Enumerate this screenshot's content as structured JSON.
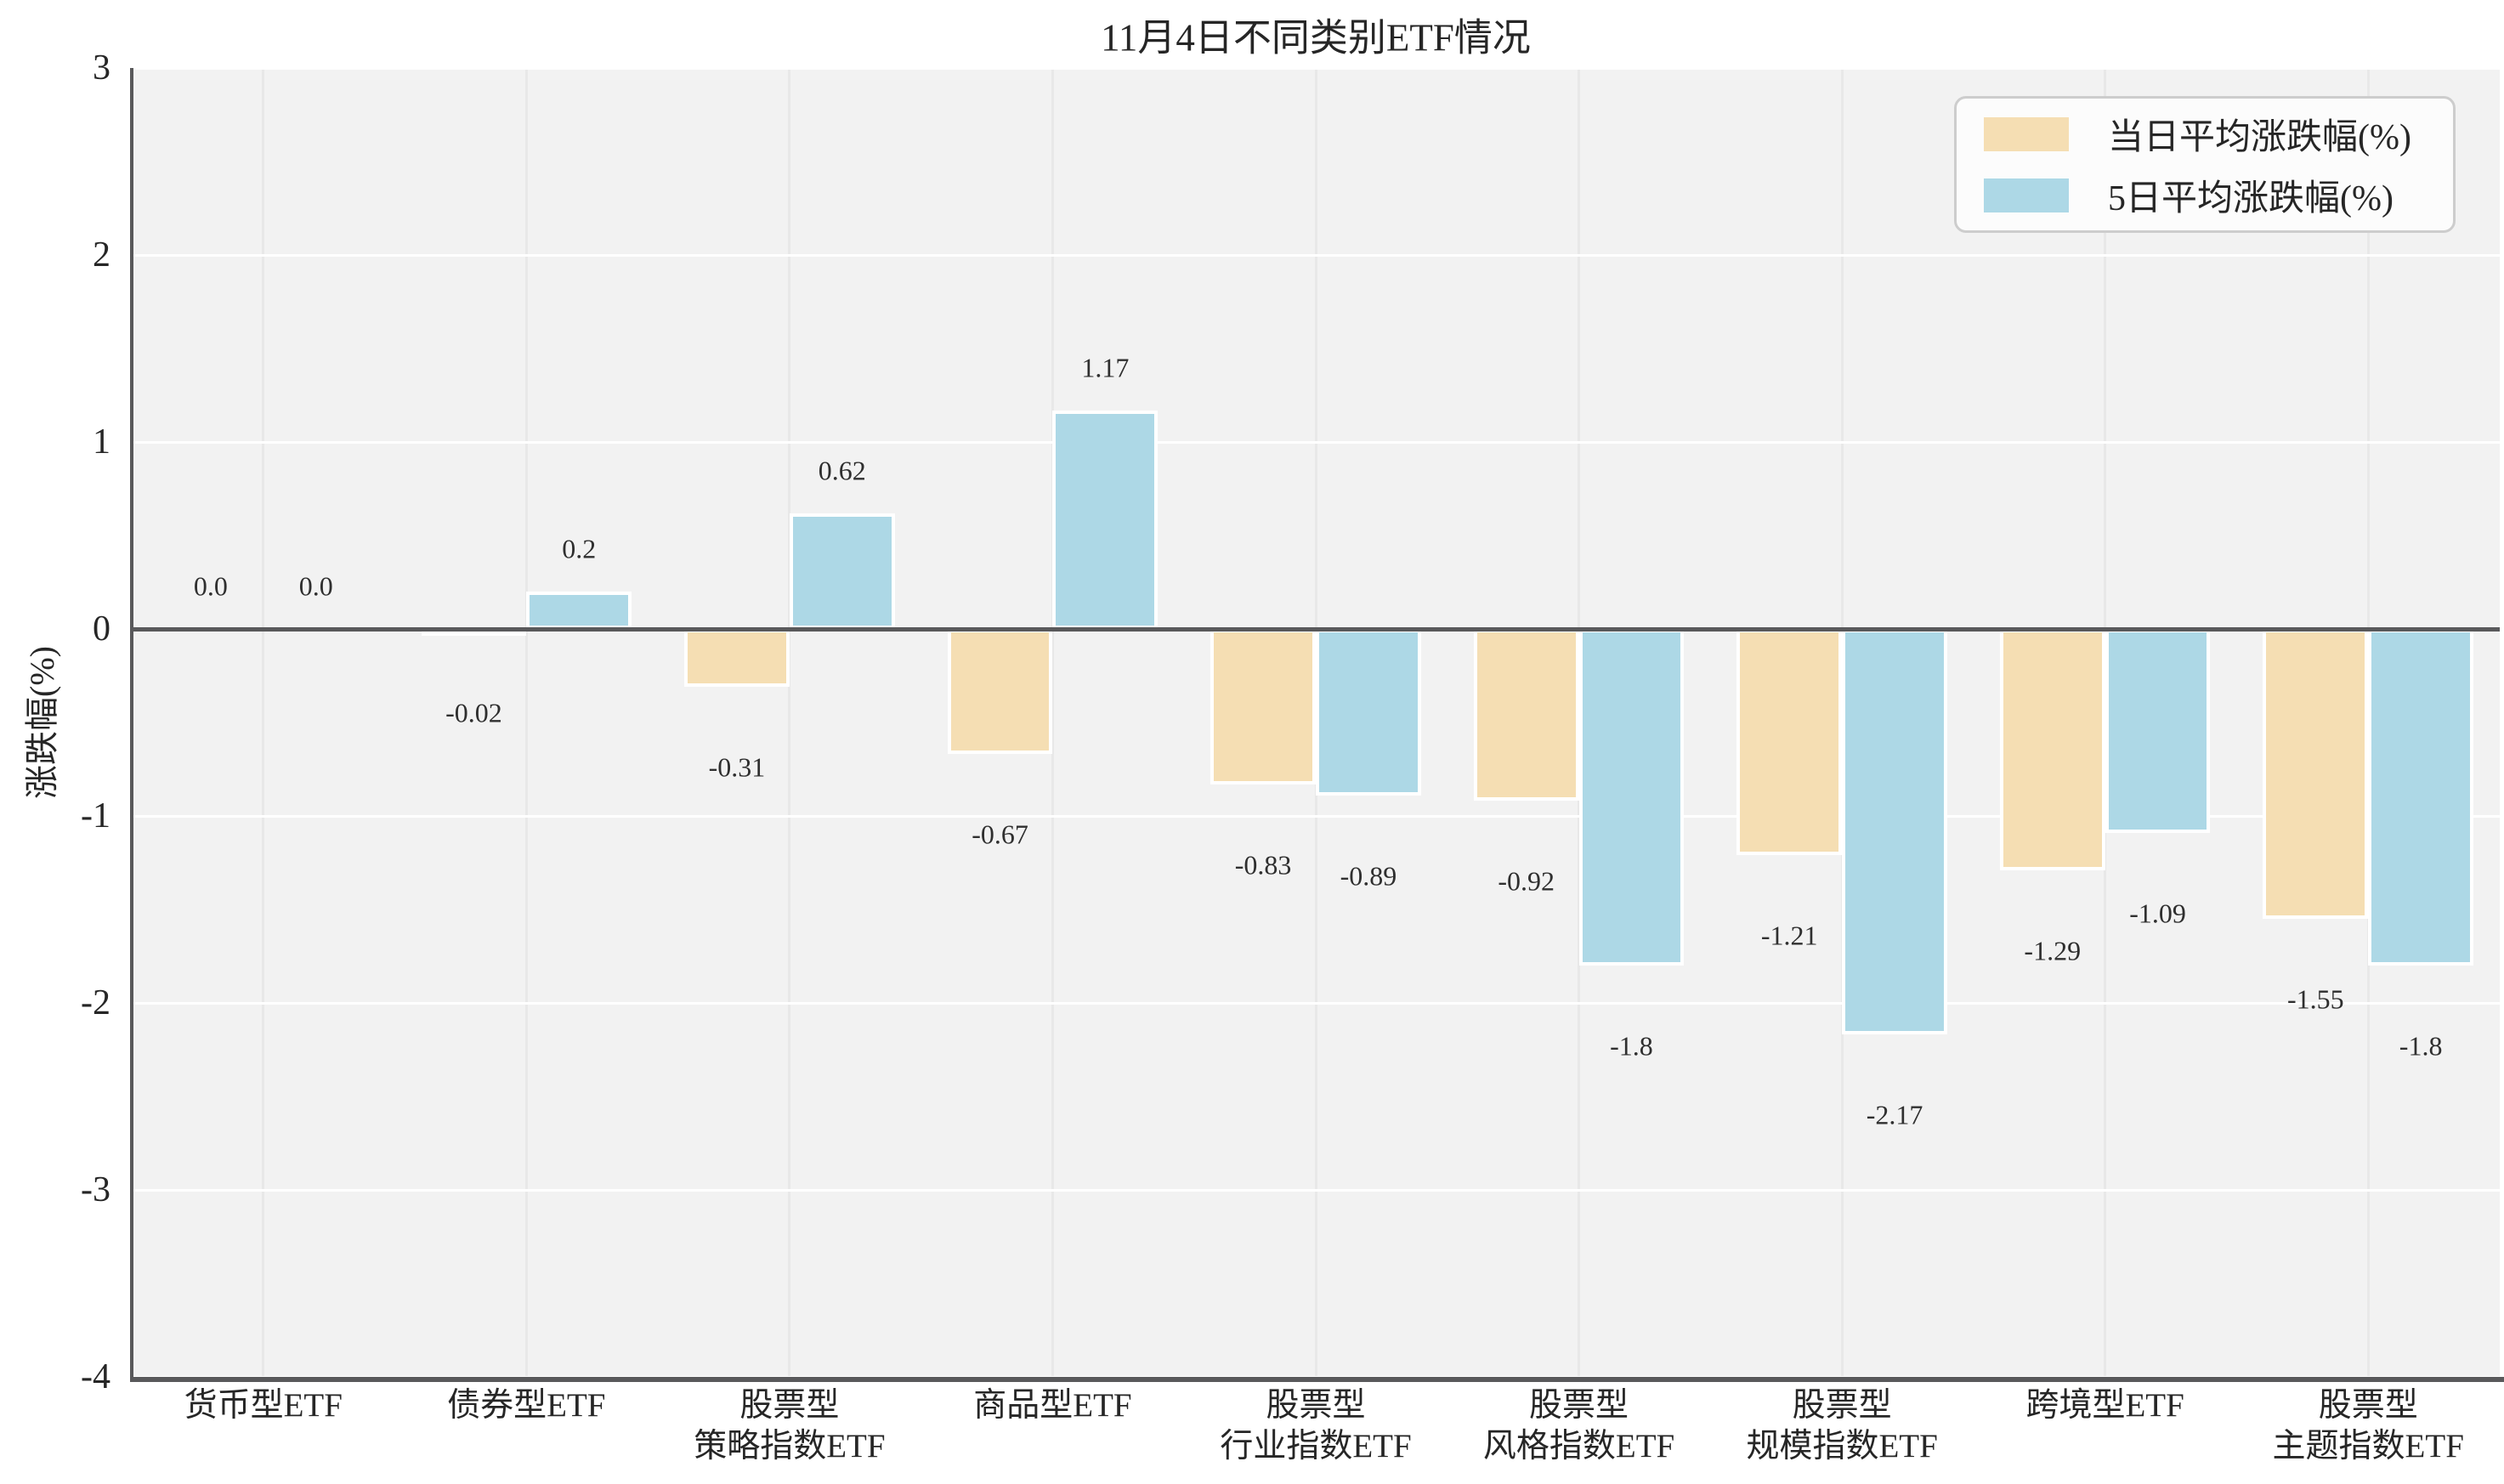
{
  "title": "11月4日不同类别ETF情况",
  "axis": {
    "y_title": "涨跌幅(%)",
    "y_tick_labels": [
      "3",
      "2",
      "1",
      "0",
      "-1",
      "-2",
      "-3",
      "-4"
    ]
  },
  "legend": {
    "series_1_label": "当日平均涨跌幅(%)",
    "series_2_label": "5日平均涨跌幅(%)"
  },
  "colors": {
    "series_1": "#F5DEB3",
    "series_2": "#ADD8E6",
    "plot_background": "#f2f2f2",
    "h_gridline": "#ffffff",
    "v_gridline": "#e8e8e8",
    "axis_line": "#59595b",
    "bar_edge": "#ffffff",
    "text": "#262626"
  },
  "chart_data": {
    "type": "bar",
    "title": "11月4日不同类别ETF情况",
    "xlabel": "",
    "ylabel": "涨跌幅(%)",
    "ylim": [
      -4,
      3
    ],
    "yticks": [
      3,
      2,
      1,
      0,
      -1,
      -2,
      -3,
      -4
    ],
    "grid": true,
    "legend_position": "upper right",
    "categories": [
      "货币型ETF",
      "债券型ETF",
      "股票型\n策略指数ETF",
      "商品型ETF",
      "股票型\n行业指数ETF",
      "股票型\n风格指数ETF",
      "股票型\n规模指数ETF",
      "跨境型ETF",
      "股票型\n主题指数ETF"
    ],
    "series": [
      {
        "name": "当日平均涨跌幅(%)",
        "color": "#F5DEB3",
        "values": [
          0.0,
          -0.02,
          -0.31,
          -0.67,
          -0.83,
          -0.92,
          -1.21,
          -1.29,
          -1.55
        ]
      },
      {
        "name": "5日平均涨跌幅(%)",
        "color": "#ADD8E6",
        "values": [
          0.0,
          0.2,
          0.62,
          1.17,
          -0.89,
          -1.8,
          -2.17,
          -1.09,
          -1.8
        ]
      }
    ],
    "value_labels": [
      [
        "0.0",
        "-0.02",
        "-0.31",
        "-0.67",
        "-0.83",
        "-0.92",
        "-1.21",
        "-1.29",
        "-1.55"
      ],
      [
        "0.0",
        "0.2",
        "0.62",
        "1.17",
        "-0.89",
        "-1.8",
        "-2.17",
        "-1.09",
        "-1.8"
      ]
    ]
  }
}
